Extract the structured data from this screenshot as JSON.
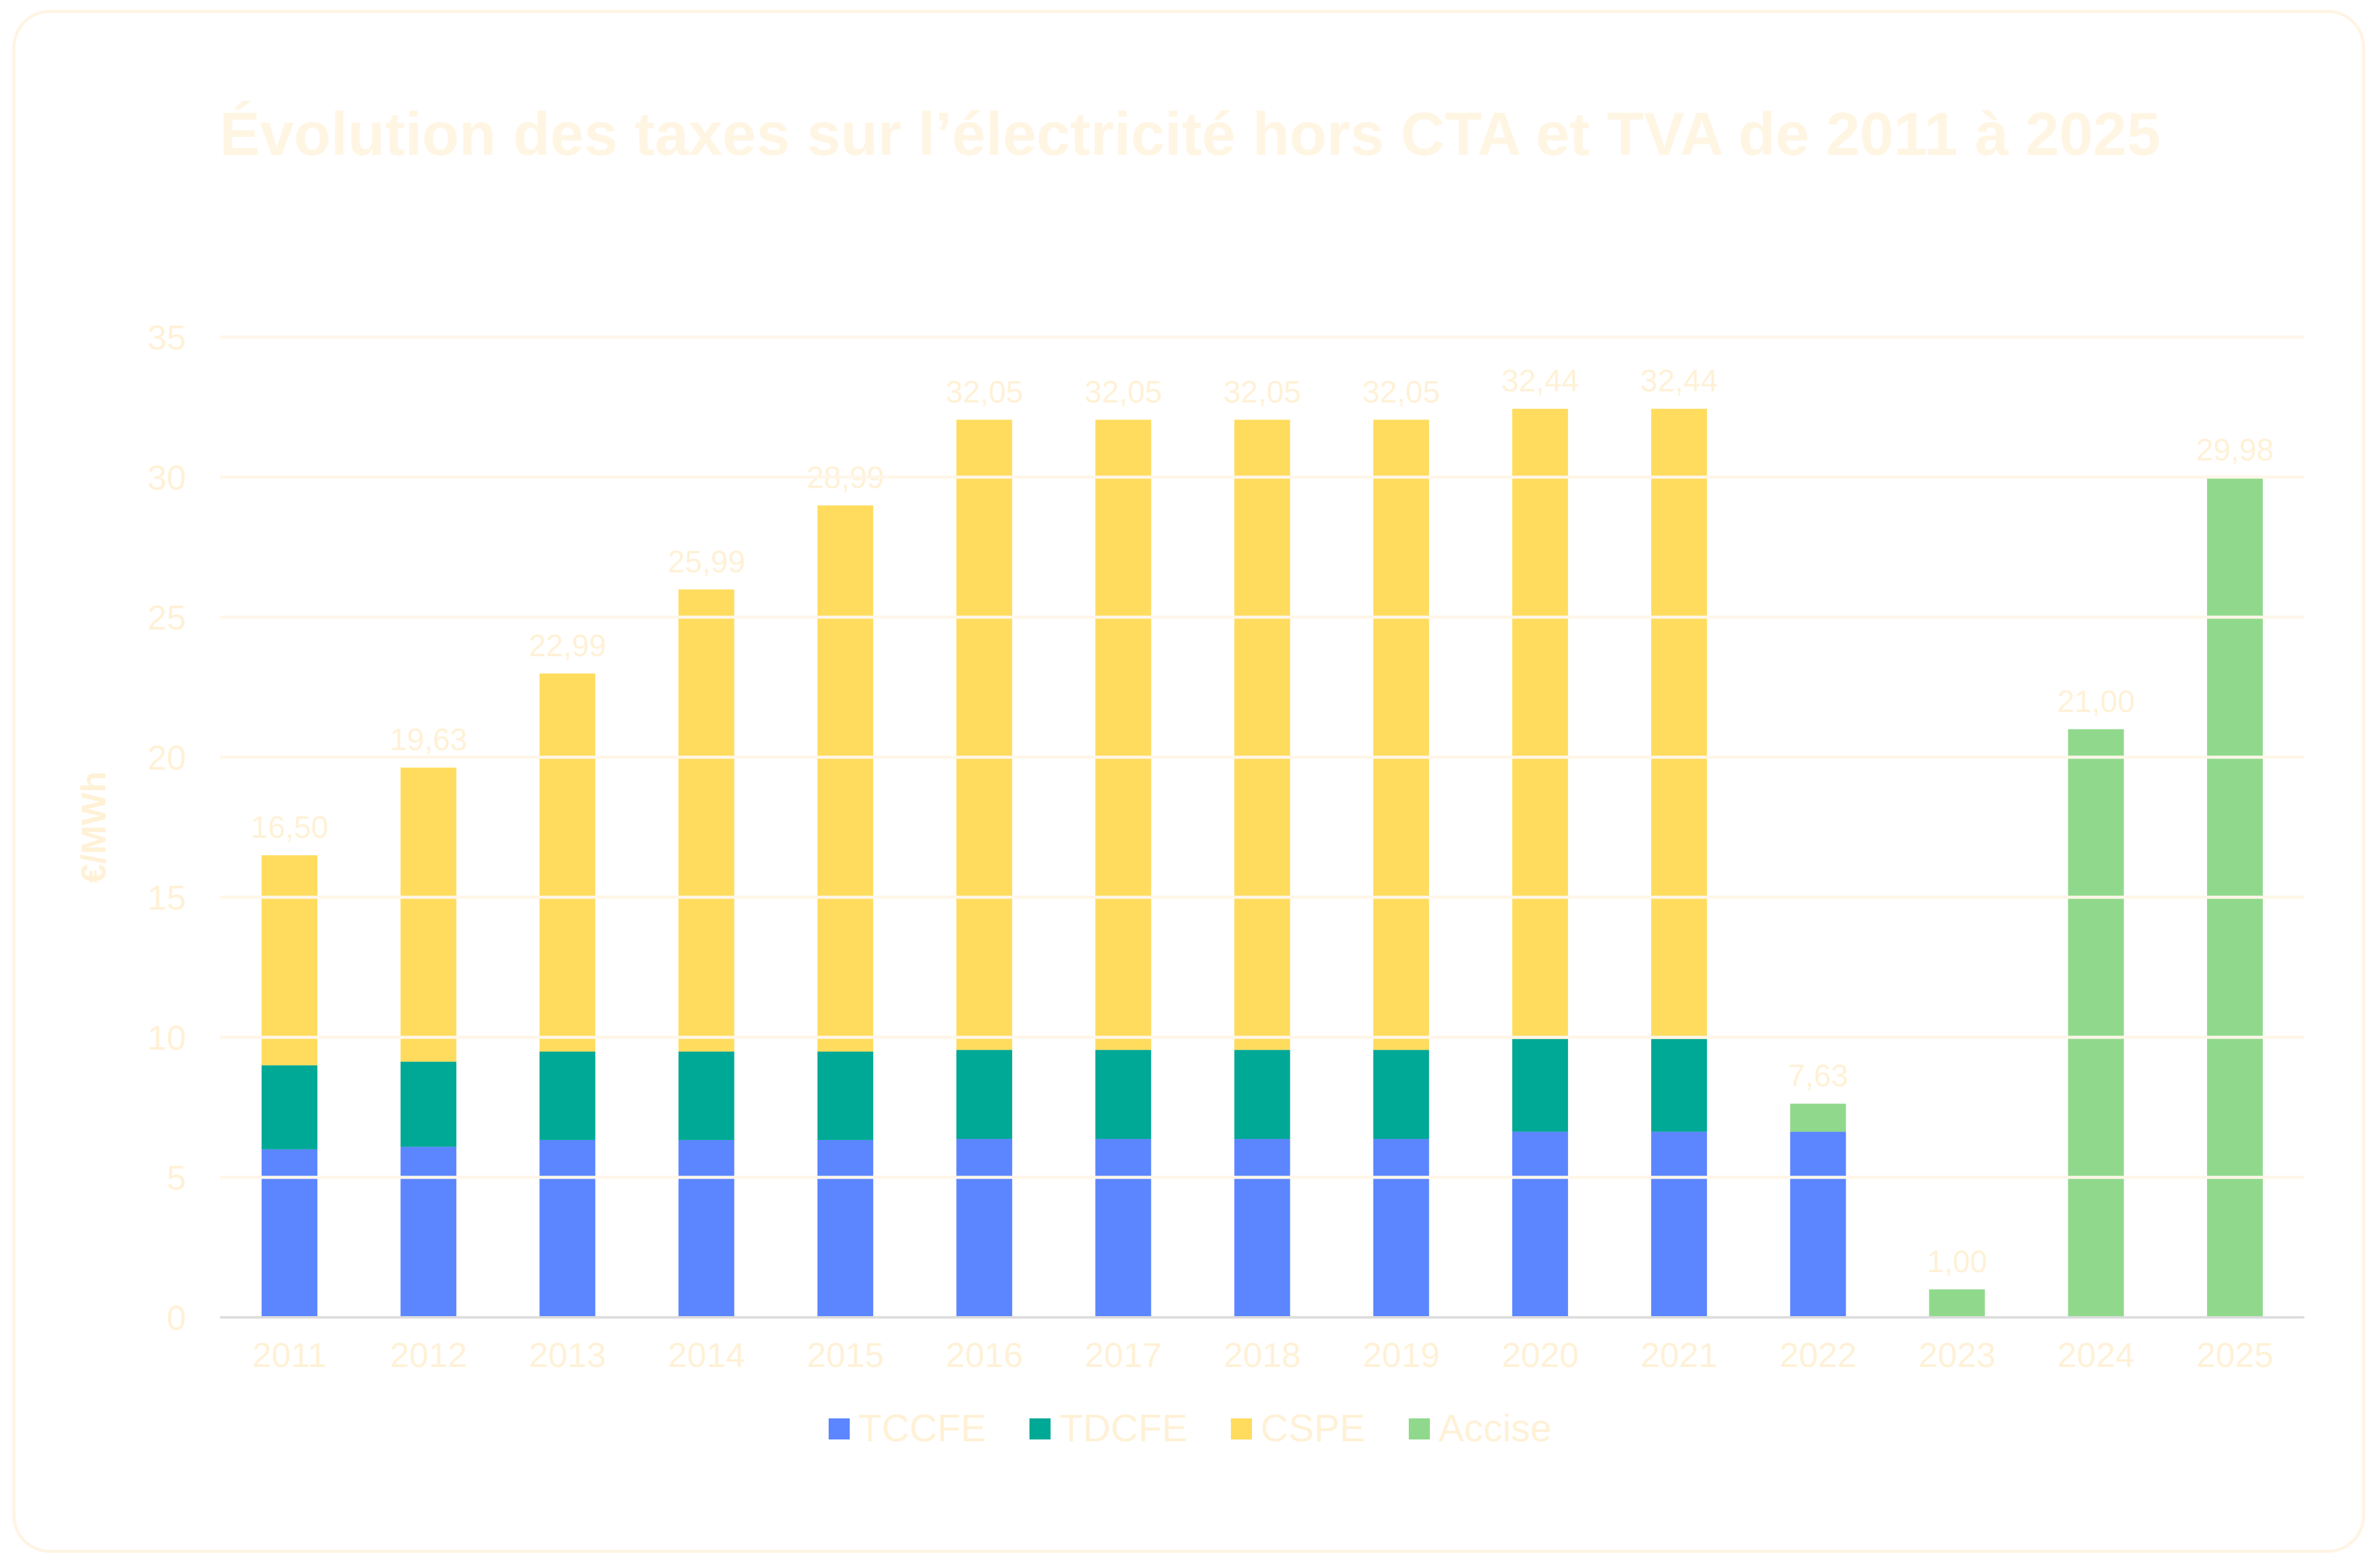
{
  "chart_data": {
    "type": "bar",
    "stacked": true,
    "title": "Évolution des taxes sur l’électricité hors CTA et TVA de 2011 à 2025",
    "xlabel": "",
    "ylabel": "€/MWh",
    "ylim": [
      0,
      35
    ],
    "yticks": [
      "0",
      "5",
      "10",
      "15",
      "20",
      "25",
      "30",
      "35"
    ],
    "grid": true,
    "legend_position": "bottom",
    "categories": [
      "2011",
      "2012",
      "2013",
      "2014",
      "2015",
      "2016",
      "2017",
      "2018",
      "2019",
      "2020",
      "2021",
      "2022",
      "2023",
      "2024",
      "2025"
    ],
    "series": [
      {
        "name": "TCCFE",
        "color": "#5b86ff",
        "values": [
          6.0,
          6.09,
          6.33,
          6.33,
          6.33,
          6.37,
          6.37,
          6.37,
          6.37,
          6.63,
          6.63,
          6.63,
          0,
          0,
          0
        ]
      },
      {
        "name": "TDCFE",
        "color": "#00a896",
        "values": [
          3.0,
          3.04,
          3.16,
          3.16,
          3.16,
          3.18,
          3.18,
          3.18,
          3.18,
          3.31,
          3.31,
          0,
          0,
          0,
          0
        ]
      },
      {
        "name": "CSPE",
        "color": "#ffdc5e",
        "values": [
          7.5,
          10.5,
          13.5,
          16.5,
          19.5,
          22.5,
          22.5,
          22.5,
          22.5,
          22.5,
          22.5,
          0,
          0,
          0,
          0
        ]
      },
      {
        "name": "Accise",
        "color": "#90d98c",
        "values": [
          0,
          0,
          0,
          0,
          0,
          0,
          0,
          0,
          0,
          0,
          0,
          1.0,
          1.0,
          21.0,
          29.98
        ]
      }
    ],
    "total_labels": [
      "16,50",
      "19,63",
      "22,99",
      "25,99",
      "28,99",
      "32,05",
      "32,05",
      "32,05",
      "32,05",
      "32,44",
      "32,44",
      "7,63",
      "1,00",
      "21,00",
      "29,98"
    ]
  }
}
